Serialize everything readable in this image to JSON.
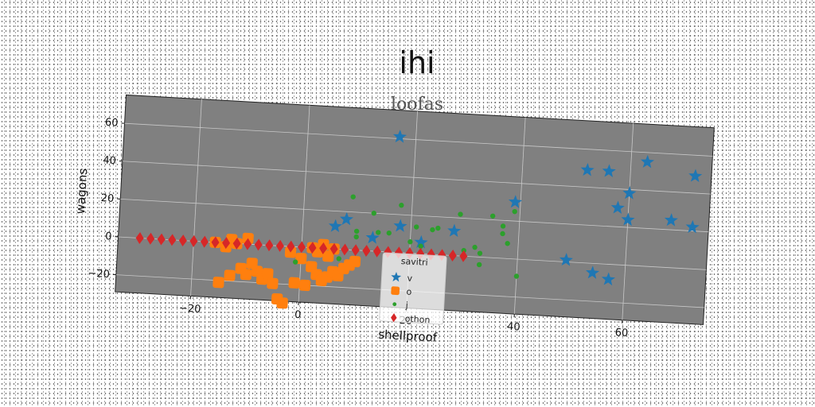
{
  "chart_data": {
    "type": "scatter",
    "title": "ihi",
    "subtitle": "loofas",
    "xlabel": "shellproof",
    "ylabel": "wagons",
    "xlim": [
      -34,
      75
    ],
    "ylim": [
      -29,
      75
    ],
    "xticks": [
      "−20",
      "0",
      "20",
      "40",
      "60"
    ],
    "xtick_values": [
      -20,
      0,
      20,
      40,
      60
    ],
    "yticks": [
      "−20",
      "0",
      "20",
      "40",
      "60"
    ],
    "ytick_values": [
      -20,
      0,
      20,
      40,
      60
    ],
    "grid": true,
    "background": "#808080",
    "legend": {
      "title": "savitri",
      "placement": "bottom-center"
    },
    "series": [
      {
        "name": "v",
        "color": "#1f77b4",
        "marker": "star",
        "points": [
          [
            17,
            61
          ],
          [
            52,
            49
          ],
          [
            56,
            49
          ],
          [
            63,
            55
          ],
          [
            72,
            49
          ],
          [
            39,
            30
          ],
          [
            60,
            38
          ],
          [
            58,
            30
          ],
          [
            60,
            24
          ],
          [
            68,
            25
          ],
          [
            72,
            22
          ],
          [
            8,
            16
          ],
          [
            6,
            12
          ],
          [
            18,
            14
          ],
          [
            13,
            7
          ],
          [
            28,
            13
          ],
          [
            22,
            6
          ],
          [
            49,
            1
          ],
          [
            54,
            -5
          ],
          [
            57,
            -8
          ]
        ]
      },
      {
        "name": "o",
        "color": "#ff7f0e",
        "marker": "square",
        "points": [
          [
            -15,
            -21
          ],
          [
            -11,
            -13
          ],
          [
            -13,
            -17
          ],
          [
            -10,
            -16
          ],
          [
            -8,
            -14
          ],
          [
            -7,
            -18
          ],
          [
            -6,
            -15
          ],
          [
            -5,
            -20
          ],
          [
            -9,
            -10
          ],
          [
            -10,
            3
          ],
          [
            -12,
            0
          ],
          [
            -3,
            -30
          ],
          [
            -4,
            -28
          ],
          [
            0,
            -6
          ],
          [
            2,
            -10
          ],
          [
            3,
            -14
          ],
          [
            -1,
            -19
          ],
          [
            1,
            -20
          ],
          [
            4,
            -17
          ],
          [
            5,
            -15
          ],
          [
            6,
            -12
          ],
          [
            7,
            -14
          ],
          [
            8,
            -10
          ],
          [
            9,
            -8
          ],
          [
            10,
            -6
          ],
          [
            3,
            -2
          ],
          [
            5,
            -4
          ],
          [
            2,
            0
          ],
          [
            -2,
            -3
          ],
          [
            -14,
            -2
          ],
          [
            -16,
            0
          ],
          [
            -13,
            2
          ],
          [
            6,
            0
          ],
          [
            4,
            2
          ]
        ]
      },
      {
        "name": "j",
        "color": "#2ca02c",
        "marker": "circle",
        "points": [
          [
            9,
            28
          ],
          [
            13,
            20
          ],
          [
            18,
            25
          ],
          [
            21,
            14
          ],
          [
            24,
            13
          ],
          [
            25,
            14
          ],
          [
            29,
            22
          ],
          [
            35,
            22
          ],
          [
            37,
            17
          ],
          [
            37,
            13
          ],
          [
            38,
            8
          ],
          [
            39,
            25
          ],
          [
            33,
            2
          ],
          [
            32,
            5
          ],
          [
            30,
            3
          ],
          [
            22,
            4
          ],
          [
            20,
            6
          ],
          [
            16,
            10
          ],
          [
            14,
            10
          ],
          [
            10,
            7
          ],
          [
            10,
            10
          ],
          [
            33,
            -4
          ],
          [
            40,
            -9
          ],
          [
            -1,
            -8
          ],
          [
            7,
            -5
          ]
        ]
      },
      {
        "name": "othon",
        "color": "#d62728",
        "marker": "diamond",
        "points": [
          [
            -30,
            0
          ],
          [
            -28,
            0
          ],
          [
            -26,
            0
          ],
          [
            -24,
            0
          ],
          [
            -22,
            0
          ],
          [
            -20,
            0
          ],
          [
            -18,
            0
          ],
          [
            -16,
            0
          ],
          [
            -14,
            0
          ],
          [
            -12,
            0
          ],
          [
            -10,
            0
          ],
          [
            -8,
            0
          ],
          [
            -6,
            0
          ],
          [
            -4,
            0
          ],
          [
            -2,
            0
          ],
          [
            0,
            0
          ],
          [
            2,
            0
          ],
          [
            4,
            0
          ],
          [
            6,
            0
          ],
          [
            8,
            0
          ],
          [
            10,
            0
          ],
          [
            12,
            0
          ],
          [
            14,
            0
          ],
          [
            16,
            0
          ],
          [
            18,
            0
          ],
          [
            20,
            0
          ],
          [
            22,
            0
          ],
          [
            24,
            0
          ],
          [
            26,
            0
          ],
          [
            28,
            0
          ],
          [
            30,
            0
          ]
        ]
      }
    ]
  }
}
